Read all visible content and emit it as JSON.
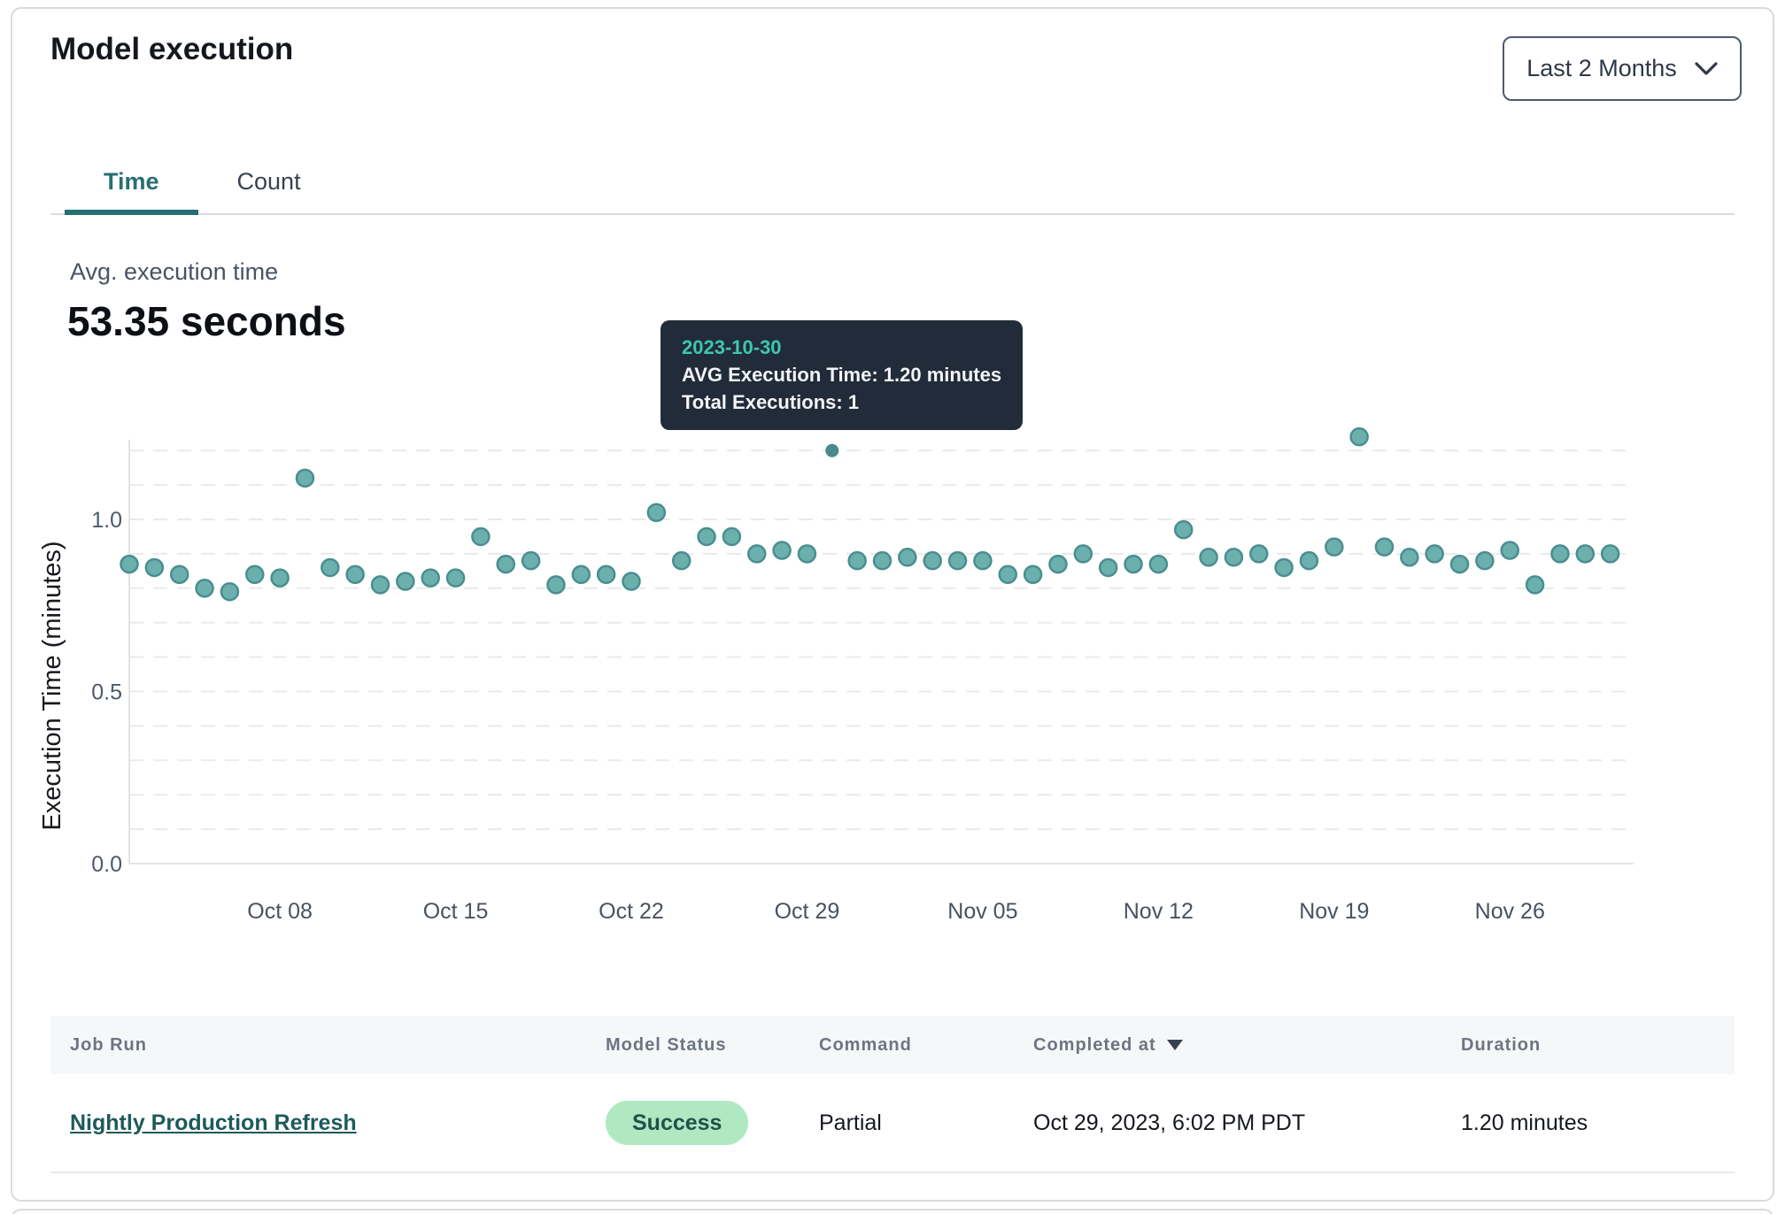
{
  "card": {
    "title": "Model execution",
    "range_selector": {
      "label": "Last 2 Months"
    },
    "tabs": [
      {
        "label": "Time",
        "active": true
      },
      {
        "label": "Count",
        "active": false
      }
    ],
    "summary": {
      "label": "Avg. execution time",
      "value": "53.35 seconds"
    }
  },
  "tooltip": {
    "date": "2023-10-30",
    "avg_line": "AVG Execution Time: 1.20 minutes",
    "total_line": "Total Executions: 1"
  },
  "chart_data": {
    "type": "scatter",
    "ylabel": "Execution Time (minutes)",
    "xlabel": "",
    "ylim": [
      0.0,
      1.3
    ],
    "y_ticks": [
      "0.0",
      "0.5",
      "1.0"
    ],
    "y_tick_values": [
      0.0,
      0.5,
      1.0
    ],
    "gridlines": "dashed horizontal every 0.1 from 0.1 to 1.2",
    "legend": "none",
    "x_tick_labels": [
      "Oct 08",
      "Oct 15",
      "Oct 22",
      "Oct 29",
      "Nov 05",
      "Nov 12",
      "Nov 19",
      "Nov 26"
    ],
    "x_tick_indices": [
      6,
      13,
      20,
      27,
      34,
      41,
      48,
      55
    ],
    "highlight_index": 28,
    "point_color": "#6cb0ae",
    "point_stroke": "#4a8e90",
    "highlight_color": "#4a8a8f",
    "points": [
      {
        "date": "2023-10-02",
        "value": 0.87
      },
      {
        "date": "2023-10-03",
        "value": 0.86
      },
      {
        "date": "2023-10-04",
        "value": 0.84
      },
      {
        "date": "2023-10-05",
        "value": 0.8
      },
      {
        "date": "2023-10-06",
        "value": 0.79
      },
      {
        "date": "2023-10-07",
        "value": 0.84
      },
      {
        "date": "2023-10-08",
        "value": 0.83
      },
      {
        "date": "2023-10-09",
        "value": 1.12
      },
      {
        "date": "2023-10-10",
        "value": 0.86
      },
      {
        "date": "2023-10-11",
        "value": 0.84
      },
      {
        "date": "2023-10-12",
        "value": 0.81
      },
      {
        "date": "2023-10-13",
        "value": 0.82
      },
      {
        "date": "2023-10-14",
        "value": 0.83
      },
      {
        "date": "2023-10-15",
        "value": 0.83
      },
      {
        "date": "2023-10-16",
        "value": 0.95
      },
      {
        "date": "2023-10-17",
        "value": 0.87
      },
      {
        "date": "2023-10-18",
        "value": 0.88
      },
      {
        "date": "2023-10-19",
        "value": 0.81
      },
      {
        "date": "2023-10-20",
        "value": 0.84
      },
      {
        "date": "2023-10-21",
        "value": 0.84
      },
      {
        "date": "2023-10-22",
        "value": 0.82
      },
      {
        "date": "2023-10-23",
        "value": 1.02
      },
      {
        "date": "2023-10-24",
        "value": 0.88
      },
      {
        "date": "2023-10-25",
        "value": 0.95
      },
      {
        "date": "2023-10-26",
        "value": 0.95
      },
      {
        "date": "2023-10-27",
        "value": 0.9
      },
      {
        "date": "2023-10-28",
        "value": 0.91
      },
      {
        "date": "2023-10-29",
        "value": 0.9
      },
      {
        "date": "2023-10-30",
        "value": 1.2
      },
      {
        "date": "2023-10-31",
        "value": 0.88
      },
      {
        "date": "2023-11-01",
        "value": 0.88
      },
      {
        "date": "2023-11-02",
        "value": 0.89
      },
      {
        "date": "2023-11-03",
        "value": 0.88
      },
      {
        "date": "2023-11-04",
        "value": 0.88
      },
      {
        "date": "2023-11-05",
        "value": 0.88
      },
      {
        "date": "2023-11-06",
        "value": 0.84
      },
      {
        "date": "2023-11-07",
        "value": 0.84
      },
      {
        "date": "2023-11-08",
        "value": 0.87
      },
      {
        "date": "2023-11-09",
        "value": 0.9
      },
      {
        "date": "2023-11-10",
        "value": 0.86
      },
      {
        "date": "2023-11-11",
        "value": 0.87
      },
      {
        "date": "2023-11-12",
        "value": 0.87
      },
      {
        "date": "2023-11-13",
        "value": 0.97
      },
      {
        "date": "2023-11-14",
        "value": 0.89
      },
      {
        "date": "2023-11-15",
        "value": 0.89
      },
      {
        "date": "2023-11-16",
        "value": 0.9
      },
      {
        "date": "2023-11-17",
        "value": 0.86
      },
      {
        "date": "2023-11-18",
        "value": 0.88
      },
      {
        "date": "2023-11-19",
        "value": 0.92
      },
      {
        "date": "2023-11-20",
        "value": 1.24
      },
      {
        "date": "2023-11-21",
        "value": 0.92
      },
      {
        "date": "2023-11-22",
        "value": 0.89
      },
      {
        "date": "2023-11-23",
        "value": 0.9
      },
      {
        "date": "2023-11-24",
        "value": 0.87
      },
      {
        "date": "2023-11-25",
        "value": 0.88
      },
      {
        "date": "2023-11-26",
        "value": 0.91
      },
      {
        "date": "2023-11-27",
        "value": 0.81
      },
      {
        "date": "2023-11-28",
        "value": 0.9
      },
      {
        "date": "2023-11-29",
        "value": 0.9
      },
      {
        "date": "2023-11-30",
        "value": 0.9
      }
    ]
  },
  "table": {
    "columns": [
      "Job Run",
      "Model Status",
      "Command",
      "Completed at",
      "Duration"
    ],
    "sorted_by": "Completed at",
    "sort_direction": "desc",
    "rows": [
      {
        "job_run": "Nightly Production Refresh",
        "model_status": "Success",
        "command": "Partial",
        "completed_at": "Oct 29, 2023, 6:02 PM PDT",
        "duration": "1.20 minutes"
      }
    ]
  },
  "colors": {
    "accent_teal": "#266f74",
    "link_teal": "#1e5a5a",
    "tooltip_bg": "#222b39",
    "tooltip_date": "#3cc7b2",
    "badge_bg": "#b0e8c2",
    "badge_text": "#24514a",
    "grid": "#e9eaec",
    "axis": "#e2e4e8"
  }
}
